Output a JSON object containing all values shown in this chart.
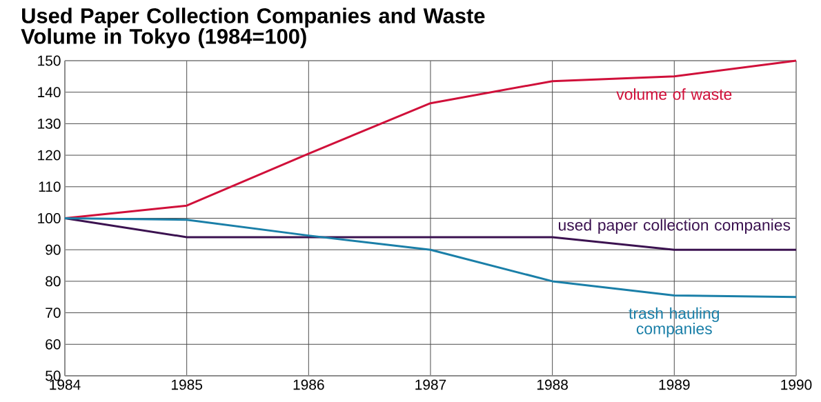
{
  "chart_data": {
    "type": "line",
    "title": "Used Paper Collection Companies and Waste Volume in Tokyo (1984=100)",
    "x": [
      1984,
      1985,
      1986,
      1987,
      1988,
      1989,
      1990
    ],
    "series": [
      {
        "name": "volume of waste",
        "color": "#d0103a",
        "values": [
          100,
          104,
          120.5,
          136.5,
          143.5,
          145,
          150
        ]
      },
      {
        "name": "used paper collection companies",
        "color": "#3b1250",
        "values": [
          100,
          94,
          94,
          94,
          94,
          90,
          90
        ]
      },
      {
        "name": "trash hauling companies",
        "color": "#1a7fa8",
        "values": [
          100,
          99.5,
          94.5,
          90,
          80,
          75.5,
          75
        ]
      }
    ],
    "xlim": [
      1984,
      1990
    ],
    "xticks": [
      1984,
      1985,
      1986,
      1987,
      1988,
      1989,
      1990
    ],
    "ylim": [
      50,
      150
    ],
    "yticks": [
      50,
      60,
      70,
      80,
      90,
      100,
      110,
      120,
      130,
      140,
      150
    ],
    "grid": true,
    "legend": false,
    "line_style": "solid"
  }
}
